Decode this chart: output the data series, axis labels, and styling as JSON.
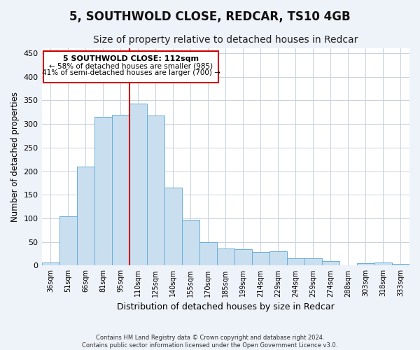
{
  "title": "5, SOUTHWOLD CLOSE, REDCAR, TS10 4GB",
  "subtitle": "Size of property relative to detached houses in Redcar",
  "xlabel": "Distribution of detached houses by size in Redcar",
  "ylabel": "Number of detached properties",
  "categories": [
    "36sqm",
    "51sqm",
    "66sqm",
    "81sqm",
    "95sqm",
    "110sqm",
    "125sqm",
    "140sqm",
    "155sqm",
    "170sqm",
    "185sqm",
    "199sqm",
    "214sqm",
    "229sqm",
    "244sqm",
    "259sqm",
    "274sqm",
    "288sqm",
    "303sqm",
    "318sqm",
    "333sqm"
  ],
  "values": [
    7,
    105,
    210,
    315,
    320,
    343,
    318,
    166,
    97,
    50,
    36,
    35,
    29,
    30,
    16,
    16,
    9,
    0,
    5,
    6,
    4
  ],
  "bar_color_face": "#c9dff0",
  "bar_color_edge": "#6aaed6",
  "vline_color": "#cc0000",
  "annotation_title": "5 SOUTHWOLD CLOSE: 112sqm",
  "annotation_line1": "← 58% of detached houses are smaller (985)",
  "annotation_line2": "41% of semi-detached houses are larger (700) →",
  "annotation_box_color": "#ffffff",
  "annotation_box_edge": "#cc0000",
  "ylim": [
    0,
    460
  ],
  "yticks": [
    0,
    50,
    100,
    150,
    200,
    250,
    300,
    350,
    400,
    450
  ],
  "footer1": "Contains HM Land Registry data © Crown copyright and database right 2024.",
  "footer2": "Contains public sector information licensed under the Open Government Licence v3.0.",
  "bg_color": "#eef2f9",
  "plot_bg_color": "#ffffff",
  "grid_color": "#c8d0de",
  "title_fontsize": 12,
  "subtitle_fontsize": 10,
  "tick_fontsize": 7,
  "ylabel_fontsize": 8.5,
  "xlabel_fontsize": 9
}
